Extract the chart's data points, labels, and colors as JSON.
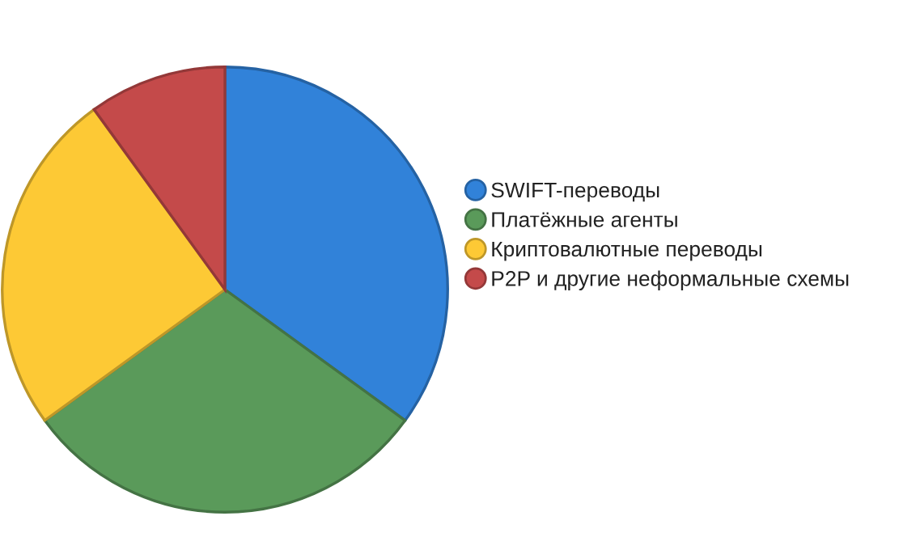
{
  "chart_data": {
    "type": "pie",
    "categories": [
      "SWIFT-переводы",
      "Платёжные агенты",
      "Криптовалютные переводы",
      "P2P и другие неформальные схемы"
    ],
    "values": [
      35,
      30,
      25,
      10
    ],
    "colors": [
      "#3182d9",
      "#5a9a5a",
      "#fdc935",
      "#c44a4a"
    ],
    "legend": "right"
  }
}
